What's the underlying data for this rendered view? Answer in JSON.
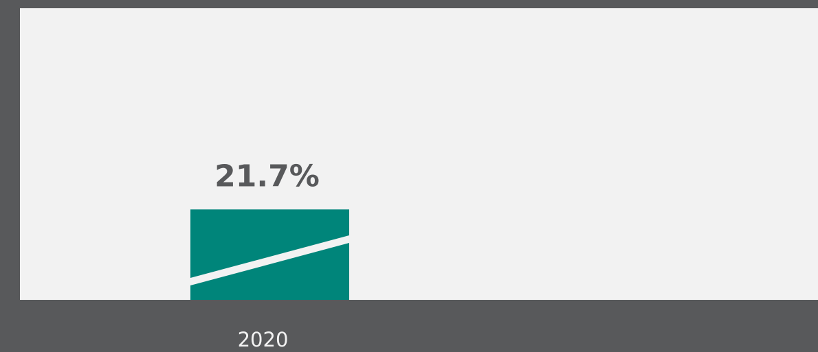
{
  "chart_data": {
    "type": "bar",
    "categories": [
      "2020"
    ],
    "values": [
      21.7
    ],
    "value_labels": [
      "21.7%"
    ],
    "color": "#00857a",
    "ylim": [
      0,
      70
    ]
  }
}
